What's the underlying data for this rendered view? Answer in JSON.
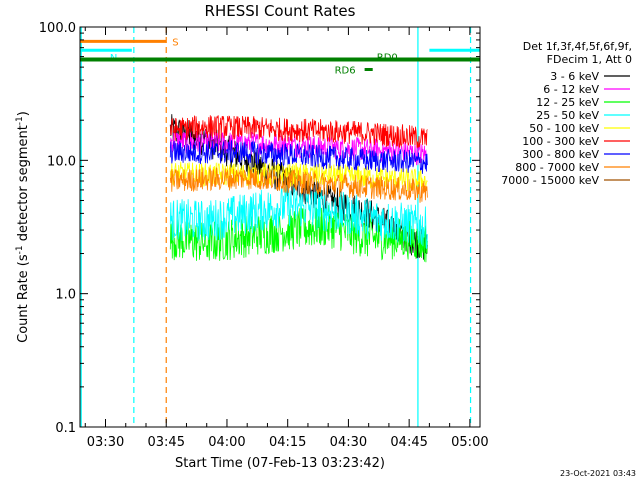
{
  "chart_data": {
    "type": "line",
    "title": "RHESSI Count Rates",
    "xlabel": "Start Time (07-Feb-13 03:23:42)",
    "ylabel_main": "Count Rate (s",
    "ylabel_sup1": "-1",
    "ylabel_mid": " detector segment",
    "ylabel_sup2": "-1",
    "ylabel_end": ")",
    "footer_timestamp": "23-Oct-2021 03:43",
    "y_scale": "log",
    "ylim": [
      0.1,
      100.0
    ],
    "xlim": [
      "03:23:42",
      "05:02:30"
    ],
    "x_ticks": [
      "03:30",
      "03:45",
      "04:00",
      "04:15",
      "04:30",
      "04:45",
      "05:00"
    ],
    "y_ticks": [
      "0.1",
      "1.0",
      "10.0",
      "100.0"
    ],
    "grid": false,
    "legend_position": "right",
    "legend_header": [
      "Det 1f,3f,4f,5f,6f,9f,",
      "FDecim 1, Att 0"
    ],
    "series": [
      {
        "name": "3 - 6 keV",
        "color": "#000000",
        "t": [
          "03:46:00",
          "03:55:00",
          "04:05:00",
          "04:15:00",
          "04:25:00",
          "04:35:00",
          "04:45:00",
          "04:49:30"
        ],
        "values": [
          17.0,
          14.0,
          10.0,
          7.0,
          5.0,
          4.0,
          2.6,
          2.2
        ]
      },
      {
        "name": "6 - 12 keV",
        "color": "#ff00ff",
        "t": [
          "03:46:00",
          "03:55:00",
          "04:05:00",
          "04:15:00",
          "04:25:00",
          "04:35:00",
          "04:45:00",
          "04:49:30"
        ],
        "values": [
          14.0,
          13.5,
          13.5,
          13.0,
          12.5,
          12.0,
          11.5,
          11.0
        ]
      },
      {
        "name": "12 - 25 keV",
        "color": "#00ff00",
        "t": [
          "03:46:00",
          "03:55:00",
          "04:05:00",
          "04:15:00",
          "04:25:00",
          "04:35:00",
          "04:45:00",
          "04:49:30"
        ],
        "values": [
          2.6,
          2.4,
          2.7,
          3.0,
          3.2,
          2.6,
          2.6,
          2.4
        ]
      },
      {
        "name": "25 - 50 keV",
        "color": "#00ffff",
        "t": [
          "03:46:00",
          "03:55:00",
          "04:05:00",
          "04:15:00",
          "04:25:00",
          "04:35:00",
          "04:45:00",
          "04:49:30"
        ],
        "values": [
          3.6,
          3.5,
          4.0,
          4.6,
          4.2,
          3.7,
          3.3,
          3.1
        ]
      },
      {
        "name": "50 - 100 keV",
        "color": "#ffff00",
        "t": [
          "03:46:00",
          "03:55:00",
          "04:05:00",
          "04:15:00",
          "04:25:00",
          "04:35:00",
          "04:45:00",
          "04:49:30"
        ],
        "values": [
          8.0,
          7.8,
          7.8,
          7.8,
          7.7,
          7.4,
          7.1,
          7.0
        ]
      },
      {
        "name": "100 - 300 keV",
        "color": "#ff0000",
        "t": [
          "03:46:00",
          "03:55:00",
          "04:05:00",
          "04:15:00",
          "04:25:00",
          "04:35:00",
          "04:45:00",
          "04:49:30"
        ],
        "values": [
          17.0,
          18.0,
          17.5,
          17.0,
          16.5,
          16.0,
          15.0,
          14.5
        ]
      },
      {
        "name": "300 - 800 keV",
        "color": "#0000ff",
        "t": [
          "03:46:00",
          "03:55:00",
          "04:05:00",
          "04:15:00",
          "04:25:00",
          "04:35:00",
          "04:45:00",
          "04:49:30"
        ],
        "values": [
          11.5,
          11.5,
          11.5,
          11.0,
          10.5,
          10.0,
          9.8,
          9.6
        ]
      },
      {
        "name": "800 - 7000 keV",
        "color": "#ff8000",
        "t": [
          "03:46:00",
          "03:55:00",
          "04:05:00",
          "04:15:00",
          "04:25:00",
          "04:35:00",
          "04:45:00",
          "04:49:30"
        ],
        "values": [
          7.0,
          7.2,
          7.4,
          7.0,
          6.6,
          6.3,
          6.0,
          5.8
        ]
      },
      {
        "name": "7000 - 15000 keV",
        "color": "#a05000",
        "t": [],
        "values": []
      }
    ],
    "flags": [
      {
        "label": "S",
        "color": "#ff8000",
        "start": "03:23:42",
        "end": "03:45:00",
        "level": 78
      },
      {
        "label": "N",
        "color": "#00ffff",
        "start": "03:23:42",
        "end": "03:36:30",
        "level": 67
      },
      {
        "label": "N",
        "color": "#00ffff",
        "start": "04:50:00",
        "end": "05:02:30",
        "level": 67
      },
      {
        "label": "RD0",
        "color": "#008000",
        "start": "03:23:42",
        "end": "05:02:30",
        "level": 57
      },
      {
        "label": "RD6",
        "color": "#008000",
        "start": "04:34:00",
        "end": "04:36:00",
        "level": 48
      }
    ],
    "vlines": [
      {
        "t": "03:24:00",
        "color": "#00ffff",
        "style": "solid"
      },
      {
        "t": "03:37:00",
        "color": "#00ffff",
        "style": "dashed"
      },
      {
        "t": "03:45:00",
        "color": "#ff8000",
        "style": "dashed"
      },
      {
        "t": "04:47:10",
        "color": "#00ffff",
        "style": "solid"
      },
      {
        "t": "05:00:10",
        "color": "#00ffff",
        "style": "dashed"
      }
    ]
  }
}
